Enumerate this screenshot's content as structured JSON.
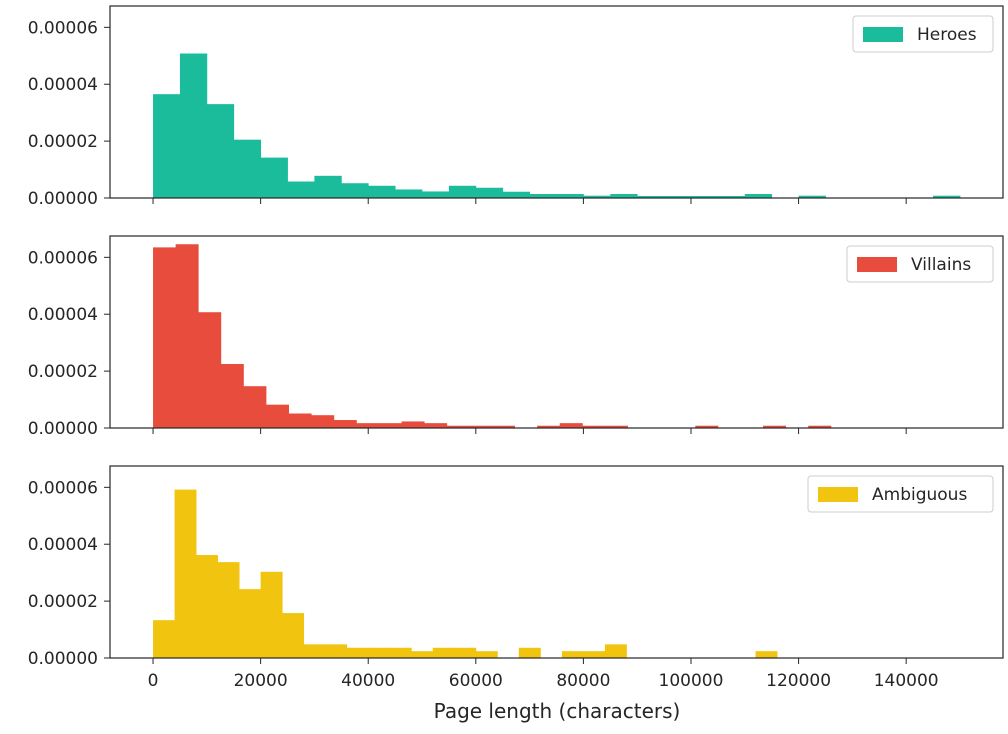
{
  "chart_data": {
    "type": "bar",
    "xlabel": "Page length (characters)",
    "x_ticks": [
      "0",
      "20000",
      "40000",
      "60000",
      "80000",
      "100000",
      "120000",
      "140000"
    ],
    "x_tick_values": [
      0,
      20000,
      40000,
      60000,
      80000,
      100000,
      120000,
      140000
    ],
    "xlim": [
      -8000,
      158000
    ],
    "y_ticks": [
      "0.00000",
      "0.00002",
      "0.00004",
      "0.00006"
    ],
    "y_tick_values": [
      0,
      2e-05,
      4e-05,
      6e-05
    ],
    "ylim": [
      0,
      6.75e-05
    ],
    "legend_position": "top-right",
    "sharex": true,
    "panels": [
      {
        "legend_label": "Heroes",
        "color": "#1abc9c",
        "bins": [
          {
            "x0": 0,
            "x1": 5000,
            "y": 3.65e-05
          },
          {
            "x0": 5000,
            "x1": 10000,
            "y": 5.08e-05
          },
          {
            "x0": 10000,
            "x1": 15000,
            "y": 3.3e-05
          },
          {
            "x0": 15000,
            "x1": 20000,
            "y": 2.05e-05
          },
          {
            "x0": 20000,
            "x1": 25000,
            "y": 1.42e-05
          },
          {
            "x0": 25000,
            "x1": 30000,
            "y": 5.8e-06
          },
          {
            "x0": 30000,
            "x1": 35000,
            "y": 7.8e-06
          },
          {
            "x0": 35000,
            "x1": 40000,
            "y": 5.2e-06
          },
          {
            "x0": 40000,
            "x1": 45000,
            "y": 4.3e-06
          },
          {
            "x0": 45000,
            "x1": 50000,
            "y": 3e-06
          },
          {
            "x0": 50000,
            "x1": 55000,
            "y": 2.3e-06
          },
          {
            "x0": 55000,
            "x1": 60000,
            "y": 4.3e-06
          },
          {
            "x0": 60000,
            "x1": 65000,
            "y": 3.6e-06
          },
          {
            "x0": 65000,
            "x1": 70000,
            "y": 2.2e-06
          },
          {
            "x0": 70000,
            "x1": 75000,
            "y": 1.4e-06
          },
          {
            "x0": 75000,
            "x1": 80000,
            "y": 1.4e-06
          },
          {
            "x0": 80000,
            "x1": 85000,
            "y": 8e-07
          },
          {
            "x0": 85000,
            "x1": 90000,
            "y": 1.4e-06
          },
          {
            "x0": 90000,
            "x1": 95000,
            "y": 7e-07
          },
          {
            "x0": 95000,
            "x1": 100000,
            "y": 7e-07
          },
          {
            "x0": 100000,
            "x1": 105000,
            "y": 7e-07
          },
          {
            "x0": 105000,
            "x1": 110000,
            "y": 7e-07
          },
          {
            "x0": 110000,
            "x1": 115000,
            "y": 1.4e-06
          },
          {
            "x0": 115000,
            "x1": 120000,
            "y": 0
          },
          {
            "x0": 120000,
            "x1": 125000,
            "y": 8e-07
          },
          {
            "x0": 125000,
            "x1": 130000,
            "y": 0
          },
          {
            "x0": 130000,
            "x1": 135000,
            "y": 0
          },
          {
            "x0": 135000,
            "x1": 140000,
            "y": 0
          },
          {
            "x0": 140000,
            "x1": 145000,
            "y": 0
          },
          {
            "x0": 145000,
            "x1": 150000,
            "y": 8e-07
          }
        ]
      },
      {
        "legend_label": "Villains",
        "color": "#e74c3c",
        "bins": [
          {
            "x0": 0,
            "x1": 4200,
            "y": 6.35e-05
          },
          {
            "x0": 4200,
            "x1": 8400,
            "y": 6.46e-05
          },
          {
            "x0": 8400,
            "x1": 12600,
            "y": 4.07e-05
          },
          {
            "x0": 12600,
            "x1": 16800,
            "y": 2.25e-05
          },
          {
            "x0": 16800,
            "x1": 21000,
            "y": 1.47e-05
          },
          {
            "x0": 21000,
            "x1": 25200,
            "y": 8.2e-06
          },
          {
            "x0": 25200,
            "x1": 29400,
            "y": 5.1e-06
          },
          {
            "x0": 29400,
            "x1": 33600,
            "y": 4.5e-06
          },
          {
            "x0": 33600,
            "x1": 37800,
            "y": 2.8e-06
          },
          {
            "x0": 37800,
            "x1": 42000,
            "y": 1.7e-06
          },
          {
            "x0": 42000,
            "x1": 46200,
            "y": 1.7e-06
          },
          {
            "x0": 46200,
            "x1": 50400,
            "y": 2.3e-06
          },
          {
            "x0": 50400,
            "x1": 54600,
            "y": 1.7e-06
          },
          {
            "x0": 54600,
            "x1": 58800,
            "y": 8e-07
          },
          {
            "x0": 58800,
            "x1": 63000,
            "y": 8e-07
          },
          {
            "x0": 63000,
            "x1": 67200,
            "y": 8e-07
          },
          {
            "x0": 67200,
            "x1": 71400,
            "y": 0
          },
          {
            "x0": 71400,
            "x1": 75600,
            "y": 8e-07
          },
          {
            "x0": 75600,
            "x1": 79800,
            "y": 1.7e-06
          },
          {
            "x0": 79800,
            "x1": 84000,
            "y": 8e-07
          },
          {
            "x0": 84000,
            "x1": 88200,
            "y": 8e-07
          },
          {
            "x0": 88200,
            "x1": 92400,
            "y": 0
          },
          {
            "x0": 92400,
            "x1": 96600,
            "y": 0
          },
          {
            "x0": 96600,
            "x1": 100800,
            "y": 0
          },
          {
            "x0": 100800,
            "x1": 105000,
            "y": 8e-07
          },
          {
            "x0": 105000,
            "x1": 109200,
            "y": 0
          },
          {
            "x0": 109200,
            "x1": 113400,
            "y": 0
          },
          {
            "x0": 113400,
            "x1": 117600,
            "y": 8e-07
          },
          {
            "x0": 117600,
            "x1": 121800,
            "y": 0
          },
          {
            "x0": 121800,
            "x1": 126000,
            "y": 8e-07
          }
        ]
      },
      {
        "legend_label": "Ambiguous",
        "color": "#f1c40f",
        "bins": [
          {
            "x0": 0,
            "x1": 4000,
            "y": 1.33e-05
          },
          {
            "x0": 4000,
            "x1": 8000,
            "y": 5.92e-05
          },
          {
            "x0": 8000,
            "x1": 12000,
            "y": 3.62e-05
          },
          {
            "x0": 12000,
            "x1": 16000,
            "y": 3.37e-05
          },
          {
            "x0": 16000,
            "x1": 20000,
            "y": 2.42e-05
          },
          {
            "x0": 20000,
            "x1": 24000,
            "y": 3.03e-05
          },
          {
            "x0": 24000,
            "x1": 28000,
            "y": 1.58e-05
          },
          {
            "x0": 28000,
            "x1": 32000,
            "y": 4.8e-06
          },
          {
            "x0": 32000,
            "x1": 36000,
            "y": 4.8e-06
          },
          {
            "x0": 36000,
            "x1": 40000,
            "y": 3.6e-06
          },
          {
            "x0": 40000,
            "x1": 44000,
            "y": 3.6e-06
          },
          {
            "x0": 44000,
            "x1": 48000,
            "y": 3.6e-06
          },
          {
            "x0": 48000,
            "x1": 52000,
            "y": 2.4e-06
          },
          {
            "x0": 52000,
            "x1": 56000,
            "y": 3.6e-06
          },
          {
            "x0": 56000,
            "x1": 60000,
            "y": 3.6e-06
          },
          {
            "x0": 60000,
            "x1": 64000,
            "y": 2.4e-06
          },
          {
            "x0": 64000,
            "x1": 68000,
            "y": 0
          },
          {
            "x0": 68000,
            "x1": 72000,
            "y": 3.6e-06
          },
          {
            "x0": 72000,
            "x1": 76000,
            "y": 0
          },
          {
            "x0": 76000,
            "x1": 80000,
            "y": 2.4e-06
          },
          {
            "x0": 80000,
            "x1": 84000,
            "y": 2.4e-06
          },
          {
            "x0": 84000,
            "x1": 88000,
            "y": 4.8e-06
          },
          {
            "x0": 88000,
            "x1": 92000,
            "y": 0
          },
          {
            "x0": 92000,
            "x1": 96000,
            "y": 0
          },
          {
            "x0": 96000,
            "x1": 100000,
            "y": 0
          },
          {
            "x0": 100000,
            "x1": 104000,
            "y": 0
          },
          {
            "x0": 104000,
            "x1": 108000,
            "y": 0
          },
          {
            "x0": 108000,
            "x1": 112000,
            "y": 0
          },
          {
            "x0": 112000,
            "x1": 116000,
            "y": 2.4e-06
          }
        ]
      }
    ]
  }
}
